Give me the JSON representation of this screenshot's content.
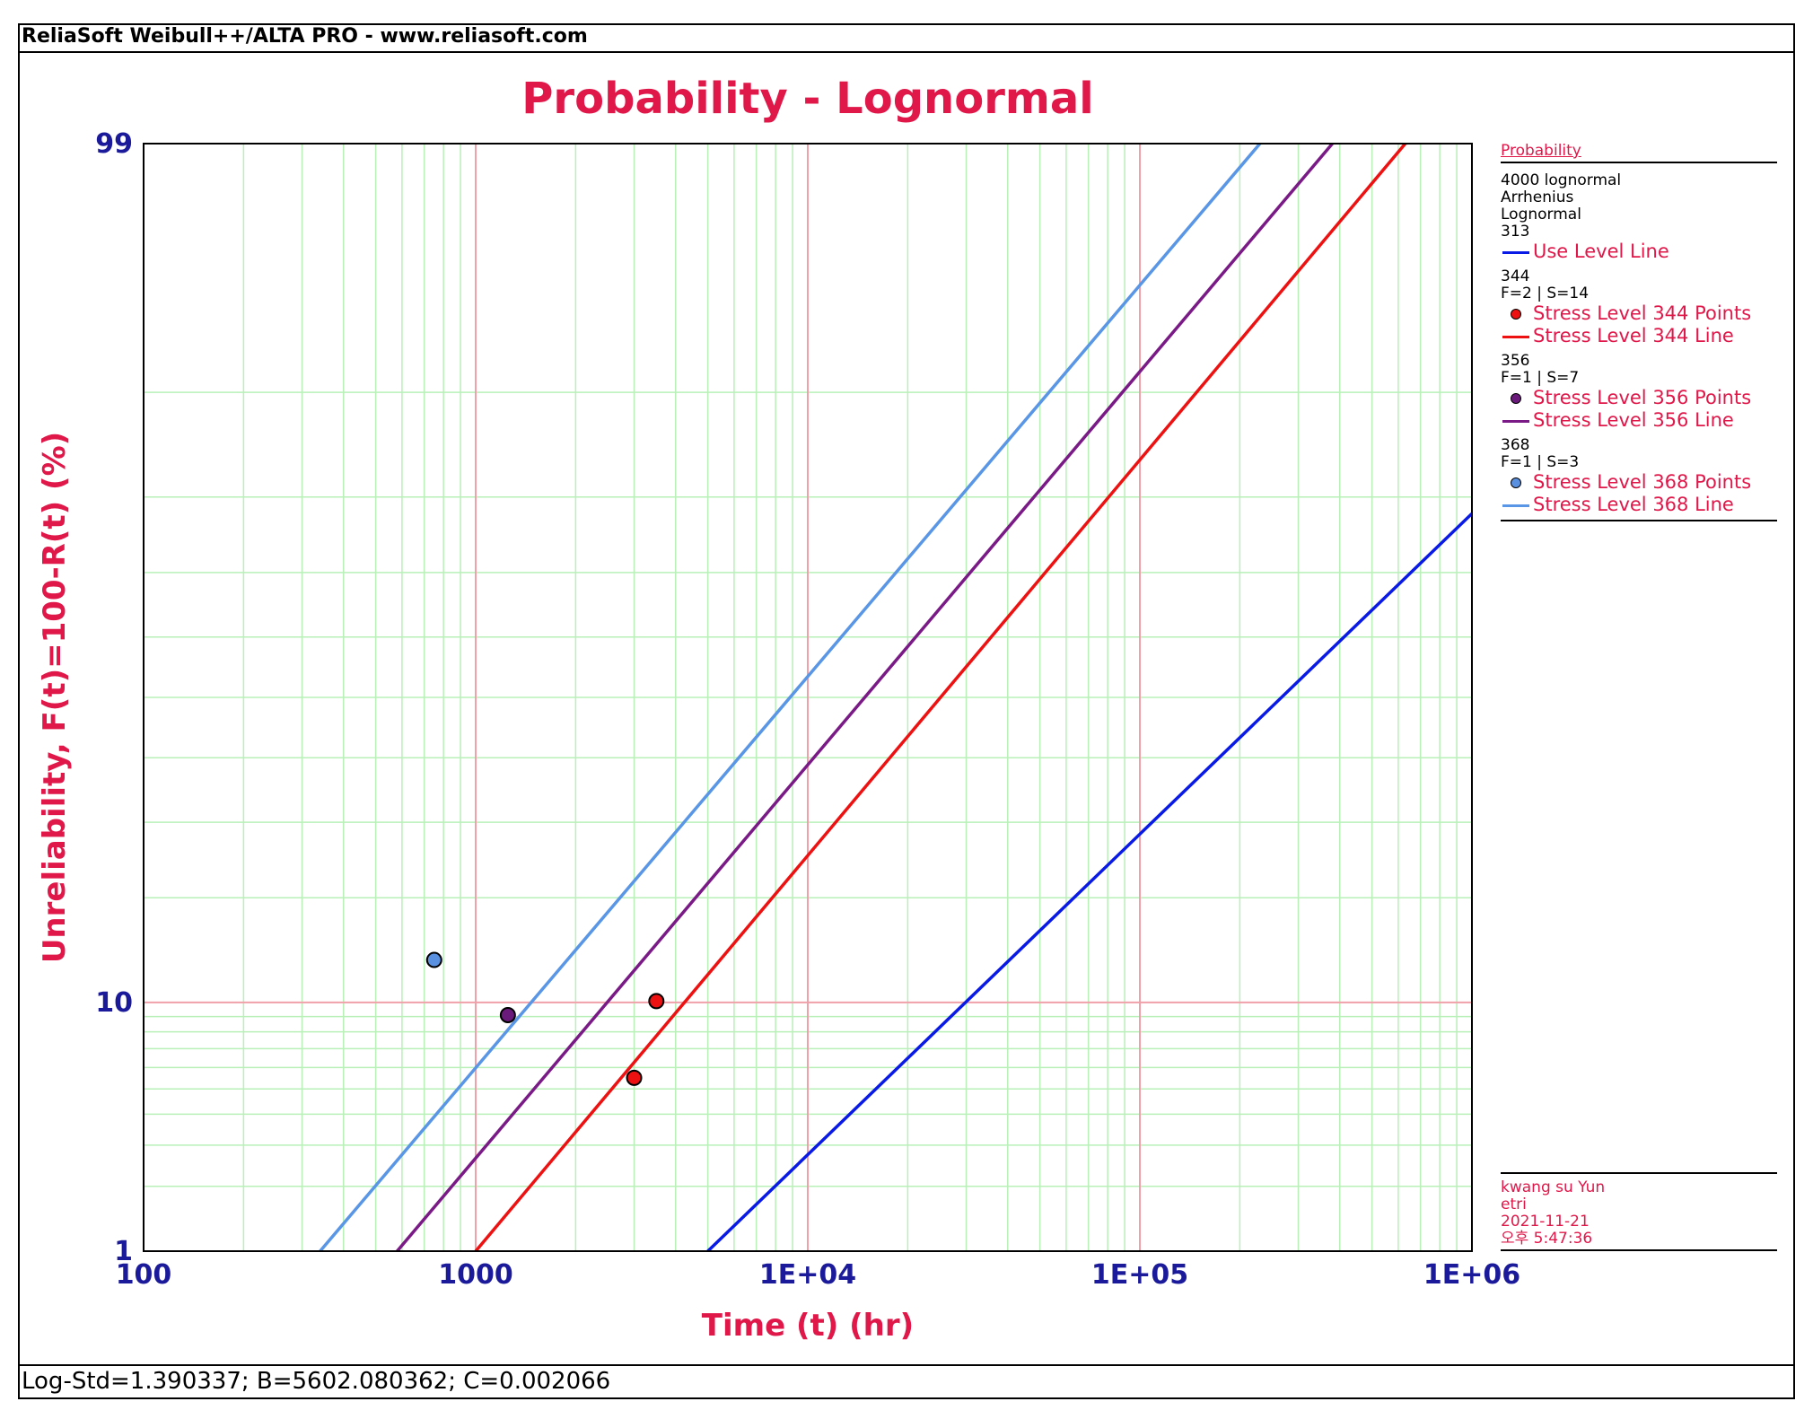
{
  "window": {
    "app_title": "ReliaSoft Weibull++/ALTA PRO - www.reliasoft.com",
    "status_text": "Log-Std=1.390337; B=5602.080362; C=0.002066"
  },
  "legend": {
    "header": "Probability",
    "info_lines": [
      "4000 lognormal",
      "Arrhenius",
      "Lognormal",
      "313"
    ],
    "groups": [
      {
        "entries": [
          {
            "label": "Use Level Line",
            "kind": "line",
            "color": "#0a1ae6"
          }
        ]
      },
      {
        "info_lines": [
          "344",
          "F=2 | S=14"
        ],
        "entries": [
          {
            "label": "Stress Level 344 Points",
            "kind": "point",
            "color": "#ee1111"
          },
          {
            "label": "Stress Level 344 Line",
            "kind": "line",
            "color": "#ee1111"
          }
        ]
      },
      {
        "info_lines": [
          "356",
          "F=1 | S=7"
        ],
        "entries": [
          {
            "label": "Stress Level 356 Points",
            "kind": "point",
            "color": "#6a1a7a"
          },
          {
            "label": "Stress Level 356 Line",
            "kind": "line",
            "color": "#7a1a86"
          }
        ]
      },
      {
        "info_lines": [
          "368",
          "F=1 | S=3"
        ],
        "entries": [
          {
            "label": "Stress Level 368 Points",
            "kind": "point",
            "color": "#5a90e0"
          },
          {
            "label": "Stress Level 368 Line",
            "kind": "line",
            "color": "#5a96e6"
          }
        ]
      }
    ]
  },
  "user_info": [
    "kwang su Yun",
    "etri",
    "2021-11-21",
    "오후 5:47:36"
  ],
  "chart_data": {
    "type": "line",
    "title": "Probability - Lognormal",
    "xlabel": "Time (t) (hr)",
    "ylabel": "Unreliability, F(t)=100-R(t) (%)",
    "x_scale": "log",
    "y_scale": "lognormal-probability",
    "xlim": [
      100,
      1000000
    ],
    "ylim": [
      1,
      99
    ],
    "x_tick_labels": [
      "100",
      "1000",
      "1E+04",
      "1E+05",
      "1E+06"
    ],
    "x_tick_values": [
      100,
      1000,
      10000,
      100000,
      1000000
    ],
    "y_tick_labels": [
      "1",
      "10",
      "99"
    ],
    "y_tick_values": [
      1,
      10,
      99
    ],
    "grid": true,
    "legend_position": "right",
    "series": [
      {
        "name": "Use Level Line",
        "kind": "line",
        "color": "#0a1ae6",
        "x": [
          5000,
          1000000
        ],
        "y": [
          1,
          78
        ]
      },
      {
        "name": "Stress Level 344 Line",
        "kind": "line",
        "color": "#ee1111",
        "x": [
          1000,
          630000
        ],
        "y": [
          1,
          99
        ]
      },
      {
        "name": "Stress Level 356 Line",
        "kind": "line",
        "color": "#7a1a86",
        "x": [
          580,
          380000
        ],
        "y": [
          1,
          99
        ]
      },
      {
        "name": "Stress Level 368 Line",
        "kind": "line",
        "color": "#5a96e6",
        "x": [
          340,
          230000
        ],
        "y": [
          1,
          99
        ]
      },
      {
        "name": "Stress Level 344 Points",
        "kind": "point",
        "color": "#ee1111",
        "x": [
          3000,
          3500
        ],
        "y": [
          5.5,
          10.1
        ]
      },
      {
        "name": "Stress Level 356 Points",
        "kind": "point",
        "color": "#6a1a7a",
        "x": [
          1250
        ],
        "y": [
          9.1
        ]
      },
      {
        "name": "Stress Level 368 Points",
        "kind": "point",
        "color": "#5a90e0",
        "x": [
          750
        ],
        "y": [
          13.5
        ]
      }
    ]
  }
}
